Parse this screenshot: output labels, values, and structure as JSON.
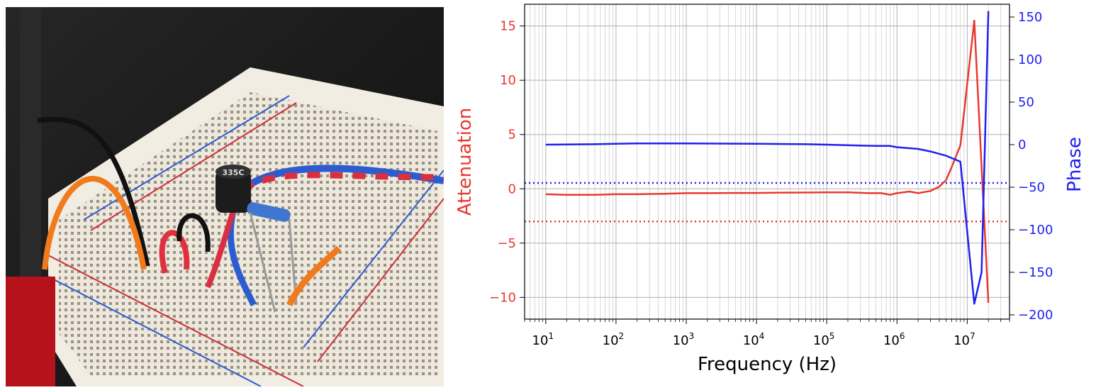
{
  "photo": {
    "component_marking": "335C"
  },
  "chart_data": {
    "type": "line",
    "xlabel": "Frequency (Hz)",
    "ylabel_left": "Attenuation",
    "ylabel_right": "Phase",
    "xscale": "log",
    "xlim": [
      5,
      40000000
    ],
    "ylim_left": [
      -12,
      17
    ],
    "ylim_right": [
      -205,
      165
    ],
    "x_ticks": [
      {
        "mant": "10",
        "exp": "1",
        "value": 10
      },
      {
        "mant": "10",
        "exp": "2",
        "value": 100
      },
      {
        "mant": "10",
        "exp": "3",
        "value": 1000
      },
      {
        "mant": "10",
        "exp": "4",
        "value": 10000
      },
      {
        "mant": "10",
        "exp": "5",
        "value": 100000
      },
      {
        "mant": "10",
        "exp": "6",
        "value": 1000000
      },
      {
        "mant": "10",
        "exp": "7",
        "value": 10000000
      }
    ],
    "y_ticks_left": [
      15,
      10,
      5,
      0,
      -5,
      -10
    ],
    "y_ticks_left_labels": [
      "15",
      "10",
      "5",
      "0",
      "−5",
      "−10"
    ],
    "y_ticks_right": [
      150,
      100,
      50,
      0,
      -50,
      -100,
      -150,
      -200
    ],
    "y_ticks_right_labels": [
      "150",
      "100",
      "50",
      "0",
      "−50",
      "−100",
      "−150",
      "−200"
    ],
    "grid": true,
    "colors": {
      "attenuation": "#e8392f",
      "phase": "#1f1ff0",
      "grid": "#b0b0b0"
    },
    "series": [
      {
        "axis": "left",
        "color": "#e8392f",
        "x": [
          10,
          20,
          50,
          100,
          200,
          500,
          1000,
          2000,
          5000,
          10000,
          20000,
          50000,
          100000,
          200000,
          400000,
          600000,
          800000,
          1000000,
          1500000,
          2000000,
          3000000,
          4000000,
          5000000,
          6000000,
          8000000,
          12600000,
          20000000
        ],
        "y": [
          -0.5,
          -0.55,
          -0.55,
          -0.5,
          -0.5,
          -0.45,
          -0.4,
          -0.4,
          -0.38,
          -0.38,
          -0.36,
          -0.34,
          -0.33,
          -0.33,
          -0.4,
          -0.4,
          -0.55,
          -0.4,
          -0.25,
          -0.4,
          -0.2,
          0.2,
          0.8,
          2.0,
          4.0,
          15.5,
          -10.5
        ]
      },
      {
        "axis": "right",
        "color": "#1f1ff0",
        "x": [
          10,
          50,
          100,
          200,
          500,
          1000,
          5000,
          10000,
          50000,
          100000,
          300000,
          500000,
          800000,
          1000000,
          2000000,
          3000000,
          5000000,
          8000000,
          12600000,
          16000000,
          20000000
        ],
        "y": [
          0,
          0.5,
          1,
          1.5,
          1.5,
          1.5,
          1.2,
          1,
          0.5,
          0,
          -1,
          -1.5,
          -1.5,
          -3,
          -5,
          -8,
          -13,
          -20,
          -187,
          -150,
          157
        ]
      }
    ],
    "reference_lines": [
      {
        "axis": "left",
        "y": -3,
        "color": "#e8392f",
        "style": "dotted"
      },
      {
        "axis": "right",
        "y": -45,
        "color": "#1f1ff0",
        "style": "dotted"
      }
    ]
  }
}
